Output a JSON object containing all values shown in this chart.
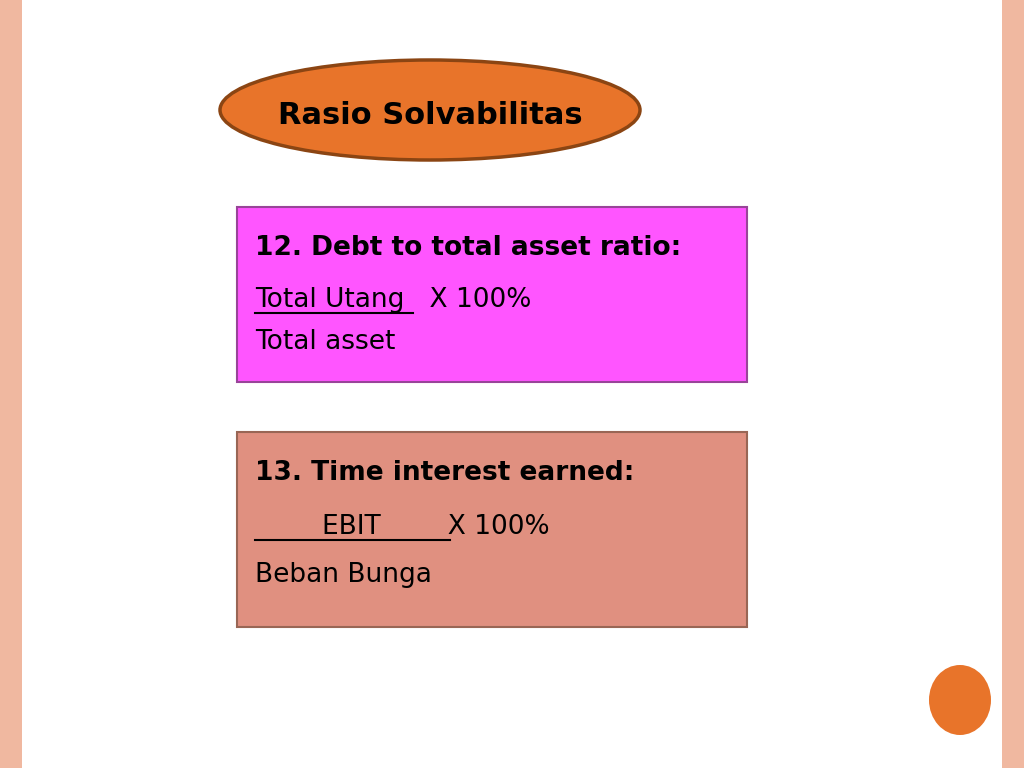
{
  "background_color": "#ffffff",
  "border_color": "#f0b8a0",
  "title_text": "Rasio Solvabilitas",
  "title_ellipse_color": "#e8742a",
  "title_ellipse_edge_color": "#8b4513",
  "box1_color": "#ff55ff",
  "box1_edge_color": "#994499",
  "box1_title": "12. Debt to total asset ratio:",
  "box1_line2": "Total Utang   X 100%",
  "box1_line3": "Total asset",
  "box2_color": "#e09080",
  "box2_edge_color": "#996655",
  "box2_title": "13. Time interest earned:",
  "box2_line2": "        EBIT        X 100%",
  "box2_line3": "Beban Bunga",
  "small_circle_color": "#e8742a",
  "font_color": "#000000",
  "border_width": 22
}
